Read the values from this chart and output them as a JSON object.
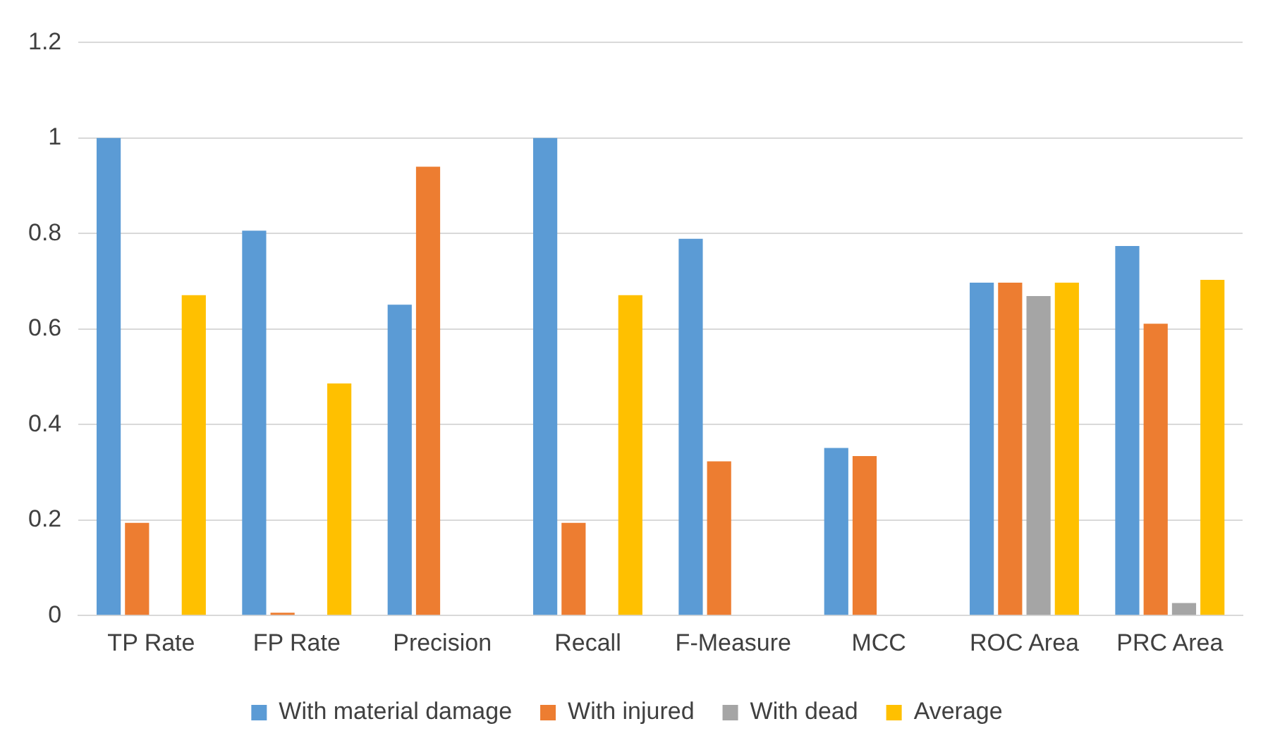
{
  "chart_data": {
    "type": "bar",
    "categories": [
      "TP Rate",
      "FP Rate",
      "Precision",
      "Recall",
      "F-Measure",
      "MCC",
      "ROC Area",
      "PRC Area"
    ],
    "series": [
      {
        "name": "With material damage",
        "color": "#5b9bd5",
        "values": [
          1.0,
          0.806,
          0.651,
          1.0,
          0.789,
          0.351,
          0.697,
          0.774
        ]
      },
      {
        "name": "With injured",
        "color": "#ed7d31",
        "values": [
          0.194,
          0.006,
          0.94,
          0.194,
          0.323,
          0.334,
          0.697,
          0.611
        ]
      },
      {
        "name": "With dead",
        "color": "#a5a5a5",
        "values": [
          0,
          0,
          0,
          0,
          0,
          0,
          0.669,
          0.026
        ]
      },
      {
        "name": "Average",
        "color": "#ffc000",
        "values": [
          0.671,
          0.486,
          0,
          0.671,
          0,
          0,
          0.697,
          0.703
        ]
      }
    ],
    "ylim": [
      0,
      1.2
    ],
    "yticks": [
      0,
      0.2,
      0.4,
      0.6,
      0.8,
      1,
      1.2
    ],
    "grid": "y",
    "legend": "bottom"
  }
}
